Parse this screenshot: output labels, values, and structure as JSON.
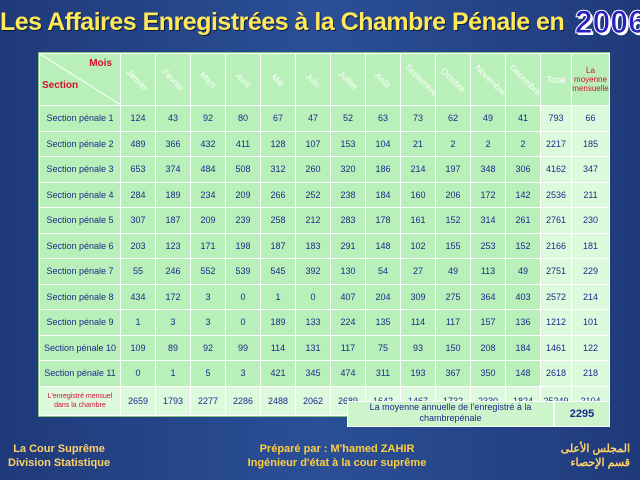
{
  "title": {
    "text": "Les Affaires Enregistrées à la Chambre Pénale en",
    "year": "2006"
  },
  "table": {
    "corner": {
      "mois": "Mois",
      "section": "Section"
    },
    "months": [
      "Janvier",
      "Février",
      "Mars",
      "Avril",
      "Mai",
      "Juin",
      "Juillet",
      "Août",
      "Septembre",
      "Octobre",
      "Novembre",
      "Décembre"
    ],
    "total_header": "Total",
    "avg_header": "La moyenne mensuelle",
    "rows": [
      {
        "label": "Section pénale 1",
        "values": [
          "124",
          "43",
          "92",
          "80",
          "67",
          "47",
          "52",
          "63",
          "73",
          "62",
          "49",
          "41"
        ],
        "total": "793",
        "avg": "66"
      },
      {
        "label": "Section pénale 2",
        "values": [
          "489",
          "366",
          "432",
          "411",
          "128",
          "107",
          "153",
          "104",
          "21",
          "2",
          "2",
          "2"
        ],
        "total": "2217",
        "avg": "185"
      },
      {
        "label": "Section pénale 3",
        "values": [
          "653",
          "374",
          "484",
          "508",
          "312",
          "260",
          "320",
          "186",
          "214",
          "197",
          "348",
          "306"
        ],
        "total": "4162",
        "avg": "347"
      },
      {
        "label": "Section pénale 4",
        "values": [
          "284",
          "189",
          "234",
          "209",
          "266",
          "252",
          "238",
          "184",
          "160",
          "206",
          "172",
          "142"
        ],
        "total": "2536",
        "avg": "211"
      },
      {
        "label": "Section pénale 5",
        "values": [
          "307",
          "187",
          "209",
          "239",
          "258",
          "212",
          "283",
          "178",
          "161",
          "152",
          "314",
          "261"
        ],
        "total": "2761",
        "avg": "230"
      },
      {
        "label": "Section pénale 6",
        "values": [
          "203",
          "123",
          "171",
          "198",
          "187",
          "183",
          "291",
          "148",
          "102",
          "155",
          "253",
          "152"
        ],
        "total": "2166",
        "avg": "181"
      },
      {
        "label": "Section pénale 7",
        "values": [
          "55",
          "246",
          "552",
          "539",
          "545",
          "392",
          "130",
          "54",
          "27",
          "49",
          "113",
          "49"
        ],
        "total": "2751",
        "avg": "229"
      },
      {
        "label": "Section pénale 8",
        "values": [
          "434",
          "172",
          "3",
          "0",
          "1",
          "0",
          "407",
          "204",
          "309",
          "275",
          "364",
          "403"
        ],
        "total": "2572",
        "avg": "214"
      },
      {
        "label": "Section pénale 9",
        "values": [
          "1",
          "3",
          "3",
          "0",
          "189",
          "133",
          "224",
          "135",
          "114",
          "117",
          "157",
          "136"
        ],
        "total": "1212",
        "avg": "101"
      },
      {
        "label": "Section pénale 10",
        "values": [
          "109",
          "89",
          "92",
          "99",
          "114",
          "131",
          "117",
          "75",
          "93",
          "150",
          "208",
          "184"
        ],
        "total": "1461",
        "avg": "122"
      },
      {
        "label": "Section pénale 11",
        "values": [
          "0",
          "1",
          "5",
          "3",
          "421",
          "345",
          "474",
          "311",
          "193",
          "367",
          "350",
          "148"
        ],
        "total": "2618",
        "avg": "218"
      }
    ],
    "sum_row": {
      "label": "L'enregistré mensuel dans la chambre",
      "values": [
        "2659",
        "1793",
        "2277",
        "2286",
        "2488",
        "2062",
        "2689",
        "1642",
        "1467",
        "1732",
        "2330",
        "1824"
      ],
      "total": "25249",
      "avg": "2104"
    }
  },
  "annual": {
    "label": "La moyenne annuelle de l'enregistré à la chambrepénale",
    "value": "2295"
  },
  "footer": {
    "left_line1": "La Cour Suprême",
    "left_line2": "Division Statistique",
    "center_line1": "Préparé par : M'hamed ZAHIR",
    "center_line2": "Ingénieur d'état à la cour suprême",
    "right_line1": "المجلس الأعلى",
    "right_line2": "قسم الإحصاء"
  }
}
